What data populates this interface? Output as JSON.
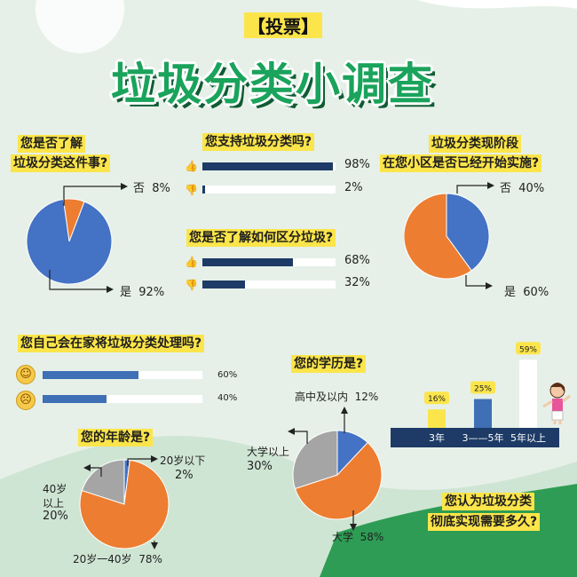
{
  "header": {
    "tag": "【投票】",
    "title": "垃圾分类小调查"
  },
  "colors": {
    "blue": "#4472c4",
    "orange": "#ed7d31",
    "gray": "#a5a5a5",
    "navy": "#1d3b66",
    "yellow": "#fbe54a",
    "green": "#1aa35b"
  },
  "icons": {
    "like": "thumbs-up-icon",
    "dislike": "thumbs-down-icon",
    "happy": "smile-face-icon",
    "sad": "sad-face-icon"
  },
  "chart_data": [
    {
      "id": "understand",
      "type": "pie",
      "title": "您是否了解垃圾分类这件事?",
      "title_lines": [
        "您是否了解",
        "垃圾分类这件事?"
      ],
      "categories": [
        "否",
        "是"
      ],
      "values": [
        8,
        92
      ],
      "value_labels": [
        "8%",
        "92%"
      ],
      "colors": [
        "#ed7d31",
        "#4472c4"
      ]
    },
    {
      "id": "support",
      "type": "bar",
      "title": "您支持垃圾分类吗?",
      "categories": [
        "支持",
        "不支持"
      ],
      "values": [
        98,
        2
      ],
      "value_labels": [
        "98%",
        "2%"
      ]
    },
    {
      "id": "know_how",
      "type": "bar",
      "title": "您是否了解如何区分垃圾?",
      "categories": [
        "是",
        "否"
      ],
      "values": [
        68,
        32
      ],
      "value_labels": [
        "68%",
        "32%"
      ]
    },
    {
      "id": "community",
      "type": "pie",
      "title": "垃圾分类现阶段在您小区是否已经开始实施?",
      "title_lines": [
        "垃圾分类现阶段",
        "在您小区是否已经开始实施?"
      ],
      "categories": [
        "否",
        "是"
      ],
      "values": [
        40,
        60
      ],
      "value_labels": [
        "40%",
        "60%"
      ],
      "colors": [
        "#4472c4",
        "#ed7d31"
      ]
    },
    {
      "id": "at_home",
      "type": "bar",
      "title": "您自己会在家将垃圾分类处理吗?",
      "categories": [
        "会",
        "不会"
      ],
      "values": [
        60,
        40
      ],
      "value_labels": [
        "60%",
        "40%"
      ]
    },
    {
      "id": "education",
      "type": "pie",
      "title": "您的学历是?",
      "categories": [
        "高中及以内",
        "大学",
        "大学以上"
      ],
      "values": [
        12,
        58,
        30
      ],
      "value_labels": [
        "12%",
        "58%",
        "30%"
      ],
      "label_lines": [
        [
          "高中及以内",
          "12%"
        ],
        [
          "大学",
          "58%"
        ],
        [
          "大学以上",
          "30%"
        ]
      ],
      "colors": [
        "#4472c4",
        "#ed7d31",
        "#a5a5a5"
      ]
    },
    {
      "id": "age",
      "type": "pie",
      "title": "您的年龄是?",
      "categories": [
        "20岁以下",
        "20岁一40岁",
        "40岁以上"
      ],
      "values": [
        2,
        78,
        20
      ],
      "value_labels": [
        "2%",
        "78%",
        "20%"
      ],
      "label_lines": [
        [
          "20岁以下",
          "2%"
        ],
        [
          "20岁一40岁",
          "78%"
        ],
        [
          "40岁",
          "以上",
          "20%"
        ]
      ],
      "colors": [
        "#4472c4",
        "#ed7d31",
        "#a5a5a5"
      ]
    },
    {
      "id": "time_needed",
      "type": "bar",
      "title": "您认为垃圾分类彻底实现需要多久?",
      "title_lines": [
        "您认为垃圾分类",
        "彻底实现需要多久?"
      ],
      "categories": [
        "3年",
        "3——5年",
        "5年以上"
      ],
      "values": [
        16,
        25,
        59
      ],
      "value_labels": [
        "16%",
        "25%",
        "59%"
      ],
      "colors": [
        "#fbe54a",
        "#3f6fb5",
        "#ffffff"
      ]
    }
  ]
}
